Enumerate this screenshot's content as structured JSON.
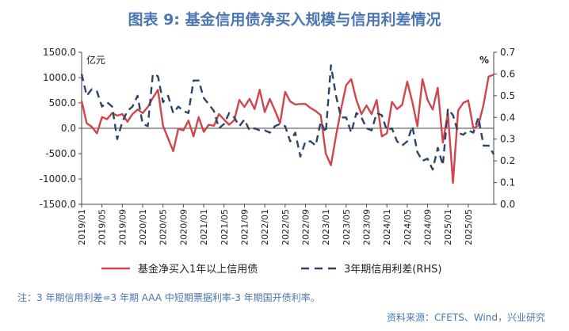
{
  "chart_data": {
    "type": "line",
    "title": "图表 9:  基金信用债净买入规模与信用利差情况",
    "left_axis_unit": "亿元",
    "right_axis_unit": "%",
    "ylim_left": [
      -1500,
      1500
    ],
    "yticks_left": [
      "1500.0",
      "1000.0",
      "500.0",
      "0.0",
      "-500.0",
      "-1000.0",
      "-1500.0"
    ],
    "ylim_right": [
      0.0,
      0.7
    ],
    "yticks_right": [
      "0.7",
      "0.6",
      "0.5",
      "0.4",
      "0.3",
      "0.2",
      "0.1",
      "0.0"
    ],
    "x_range": [
      "2019/01",
      "2025/05"
    ],
    "xticks": [
      "2019/01",
      "2019/05",
      "2019/09",
      "2020/01",
      "2020/05",
      "2020/09",
      "2021/01",
      "2021/05",
      "2021/09",
      "2022/01",
      "2022/05",
      "2022/09",
      "2023/01",
      "2023/05",
      "2023/09",
      "2024/01",
      "2024/05",
      "2024/09",
      "2025/01",
      "2025/05"
    ],
    "series": [
      {
        "name": "基金净买入1年以上信用债",
        "axis": "left",
        "color": "#d1454f",
        "style": "solid",
        "values": [
          540,
          100,
          30,
          -100,
          220,
          180,
          300,
          250,
          280,
          130,
          280,
          370,
          300,
          420,
          600,
          760,
          50,
          -200,
          -450,
          -10,
          -40,
          150,
          -160,
          220,
          -70,
          70,
          50,
          280,
          170,
          70,
          160,
          560,
          420,
          580,
          380,
          760,
          320,
          580,
          350,
          100,
          720,
          530,
          470,
          480,
          480,
          400,
          340,
          260,
          -500,
          -730,
          -150,
          380,
          850,
          970,
          560,
          280,
          450,
          280,
          560,
          -160,
          -100,
          520,
          380,
          460,
          920,
          520,
          40,
          970,
          560,
          370,
          800,
          -280,
          300,
          -1080,
          350,
          500,
          550,
          0,
          60,
          470,
          1020,
          1060
        ]
      },
      {
        "name": "3年期信用利差(RHS)",
        "axis": "right",
        "color": "#2e4466",
        "style": "dashed",
        "values": [
          0.6,
          0.5,
          0.53,
          0.52,
          0.45,
          0.47,
          0.45,
          0.3,
          0.38,
          0.43,
          0.45,
          0.5,
          0.37,
          0.36,
          0.6,
          0.59,
          0.47,
          0.5,
          0.42,
          0.45,
          0.43,
          0.42,
          0.57,
          0.57,
          0.49,
          0.46,
          0.43,
          0.35,
          0.37,
          0.42,
          0.4,
          0.36,
          0.39,
          0.34,
          0.35,
          0.34,
          0.34,
          0.33,
          0.36,
          0.37,
          0.36,
          0.29,
          0.33,
          0.22,
          0.29,
          0.29,
          0.27,
          0.38,
          0.33,
          0.64,
          0.5,
          0.4,
          0.4,
          0.33,
          0.42,
          0.4,
          0.35,
          0.34,
          0.42,
          0.41,
          0.34,
          0.35,
          0.29,
          0.27,
          0.29,
          0.36,
          0.24,
          0.2,
          0.21,
          0.16,
          0.26,
          0.18,
          0.44,
          0.41,
          0.33,
          0.32,
          0.34,
          0.33,
          0.4,
          0.27,
          0.27,
          0.23
        ]
      }
    ],
    "legend": [
      "基金净买入1年以上信用债",
      "3年期信用利差(RHS)"
    ],
    "legend_position": "bottom"
  },
  "footer": {
    "note": "注：3 年期信用利差=3 年期 AAA 中短期票据利率-3 年期国开债利率。",
    "source": "资料来源：CFETS、Wind，兴业研究"
  }
}
